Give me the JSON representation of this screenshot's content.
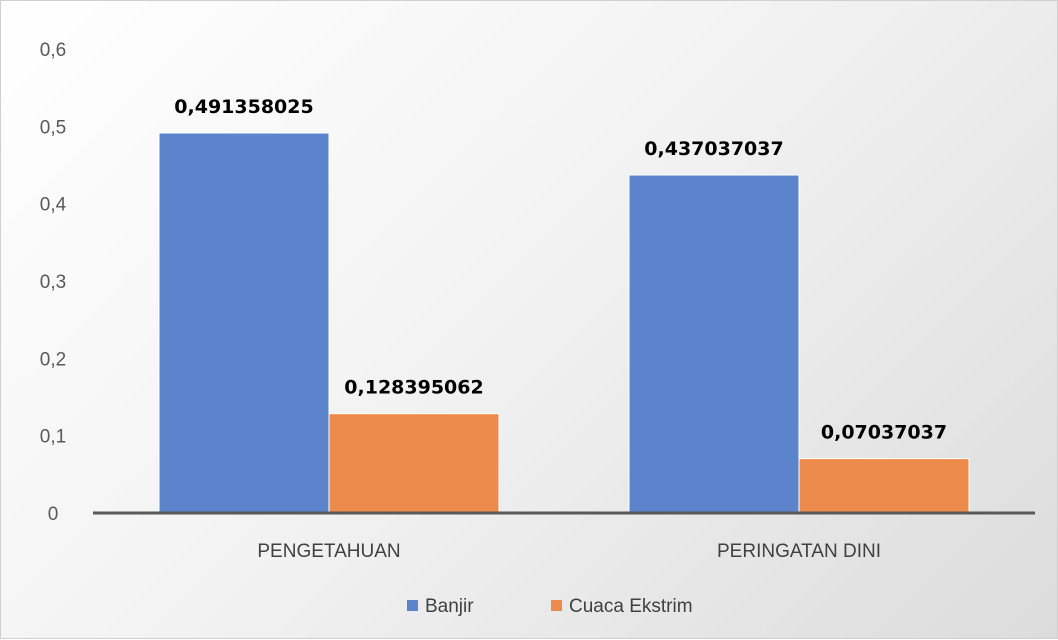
{
  "chart_data": {
    "type": "bar",
    "title": "",
    "xlabel": "",
    "ylabel": "",
    "categories": [
      "PENGETAHUAN",
      "PERINGATAN DINI"
    ],
    "series": [
      {
        "name": "Banjir",
        "color": "#5b84cc",
        "values": [
          0.491358025,
          0.437037037
        ],
        "labels": [
          "0,491358025",
          "0,437037037"
        ]
      },
      {
        "name": "Cuaca Ekstrim",
        "color": "#ec8b4c",
        "values": [
          0.128395062,
          0.07037037
        ],
        "labels": [
          "0,128395062",
          "0,07037037"
        ]
      }
    ],
    "ylim": [
      0,
      0.6
    ],
    "yticks": [
      0,
      0.1,
      0.2,
      0.3,
      0.4,
      0.5,
      0.6
    ],
    "ytick_labels": [
      "0",
      "0,1",
      "0,2",
      "0,3",
      "0,4",
      "0,5",
      "0,6"
    ],
    "grid": false,
    "legend_position": "bottom"
  }
}
